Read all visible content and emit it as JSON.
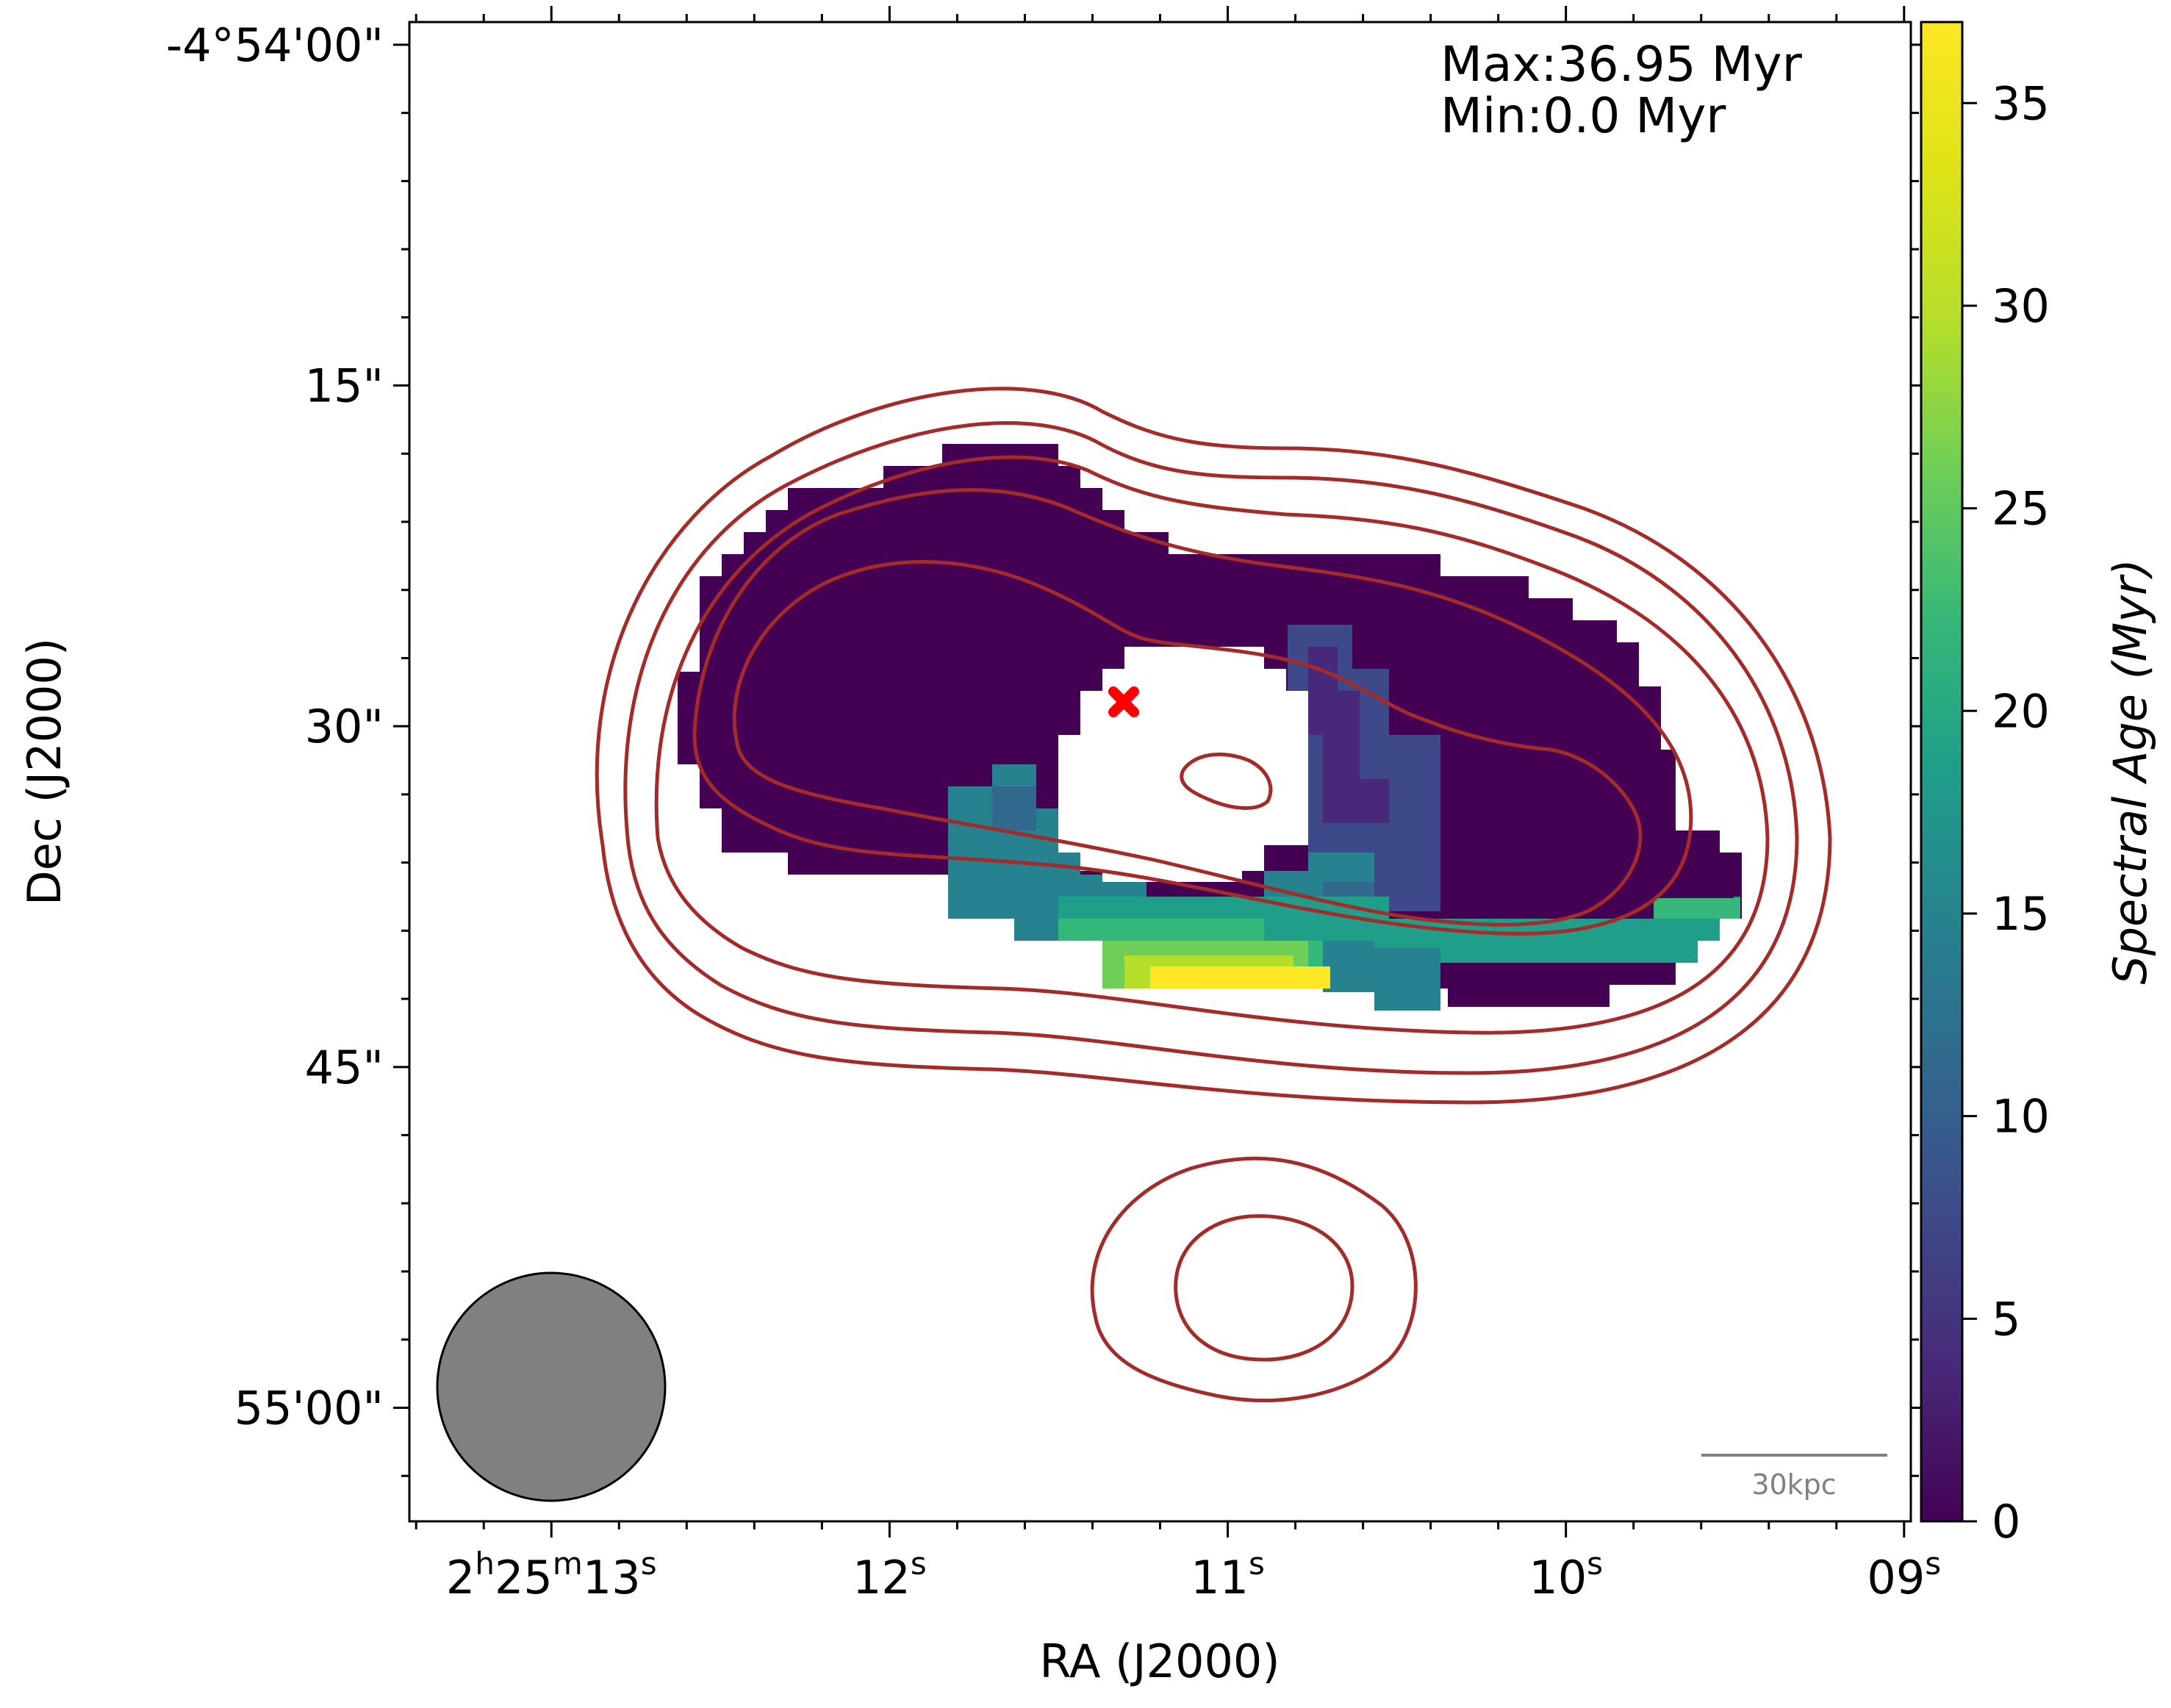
{
  "chart_data": {
    "type": "heatmap",
    "title": "",
    "xlabel": "RA (J2000)",
    "ylabel": "Dec (J2000)",
    "x_ticks": [
      {
        "label": "2h25m13s",
        "parts": [
          [
            "2",
            "h"
          ],
          [
            "25",
            "m"
          ],
          [
            "13",
            "s"
          ]
        ],
        "ra_seconds": 13
      },
      {
        "label": "12s",
        "parts": [
          [
            "12",
            "s"
          ]
        ],
        "ra_seconds": 12
      },
      {
        "label": "11s",
        "parts": [
          [
            "11",
            "s"
          ]
        ],
        "ra_seconds": 11
      },
      {
        "label": "10s",
        "parts": [
          [
            "10",
            "s"
          ]
        ],
        "ra_seconds": 10
      },
      {
        "label": "09s",
        "parts": [
          [
            "09",
            "s"
          ]
        ],
        "ra_seconds": 9
      }
    ],
    "xlim_ra_seconds": [
      13.42,
      8.98
    ],
    "y_ticks": [
      {
        "label": "-4°54'00\"",
        "dec_arcsec_offset": 0
      },
      {
        "label": "15\"",
        "dec_arcsec_offset": 15
      },
      {
        "label": "30\"",
        "dec_arcsec_offset": 30
      },
      {
        "label": "45\"",
        "dec_arcsec_offset": 45
      },
      {
        "label": "55'00\"",
        "dec_arcsec_offset": 60
      }
    ],
    "ylim_dec_arcsec_offset": [
      -1,
      65
    ],
    "annotation_max": "Max:36.95 Myr",
    "annotation_min": "Min:0.0 Myr",
    "max_age_myr": 36.95,
    "min_age_myr": 0.0,
    "scale_bar_label": "30kpc",
    "colorbar": {
      "label": "Spectral Age (Myr)",
      "colormap": "viridis",
      "range": [
        0,
        37
      ],
      "ticks": [
        0,
        5,
        10,
        15,
        20,
        25,
        30,
        35
      ]
    },
    "source_regions_myr": [
      {
        "name": "radio lobes (bulk)",
        "age_myr": 0.5
      },
      {
        "name": "central hole (no data)",
        "age_myr": null
      },
      {
        "name": "inner lobe blue stripe",
        "age_myr": 8
      },
      {
        "name": "southern tail teal",
        "age_myr": 17
      },
      {
        "name": "southern tail green",
        "age_myr": 23
      },
      {
        "name": "southern tail yellow",
        "age_myr": 36.95
      }
    ],
    "contour_color": "#a52a2a",
    "marker": {
      "type": "cross",
      "color": "#ff0000",
      "description": "host position"
    },
    "beam": {
      "color": "#808080",
      "edge": "#000000"
    }
  }
}
